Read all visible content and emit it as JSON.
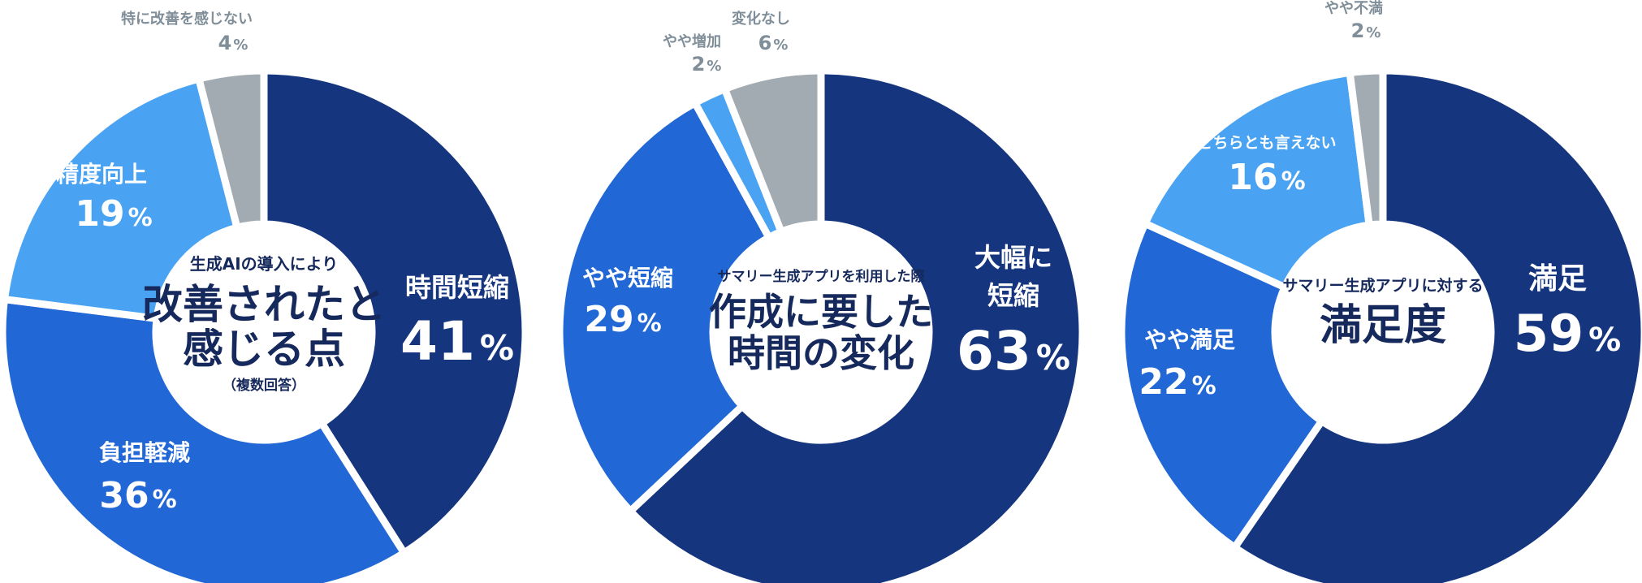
{
  "colors": {
    "navy": "#15357f",
    "blue": "#2167d6",
    "light_blue": "#4aa3f2",
    "grey": "#a1abb1",
    "text_dark": "#16295c",
    "text_grey": "#7f8e98"
  },
  "chart_data": [
    {
      "type": "pie",
      "center": {
        "line1": "生成AIの導入により",
        "line2": "改善されたと",
        "line3": "感じる点",
        "note": "（複数回答）"
      },
      "slices": [
        {
          "label": "時間短縮",
          "value": 41,
          "pct": "%",
          "color": "navy"
        },
        {
          "label": "負担軽減",
          "value": 36,
          "pct": "%",
          "color": "blue"
        },
        {
          "label": "精度向上",
          "value": 19,
          "pct": "%",
          "color": "light_blue"
        },
        {
          "label": "特に改善を感じない",
          "value": 4,
          "pct": "%",
          "color": "grey"
        }
      ]
    },
    {
      "type": "pie",
      "center": {
        "line1": "サマリー生成アプリを利用した際",
        "line2": "作成に要した",
        "line3": "時間の変化"
      },
      "slices": [
        {
          "label_line1": "大幅に",
          "label_line2": "短縮",
          "value": 63,
          "pct": "%",
          "color": "navy"
        },
        {
          "label": "やや短縮",
          "value": 29,
          "pct": "%",
          "color": "blue"
        },
        {
          "label": "やや増加",
          "value": 2,
          "pct": "%",
          "color": "light_blue"
        },
        {
          "label": "変化なし",
          "value": 6,
          "pct": "%",
          "color": "grey"
        }
      ]
    },
    {
      "type": "pie",
      "center": {
        "line1": "サマリー生成アプリに対する",
        "line2": "満足度"
      },
      "slices": [
        {
          "label": "満足",
          "value": 59,
          "pct": "%",
          "color": "navy"
        },
        {
          "label": "やや満足",
          "value": 22,
          "pct": "%",
          "color": "blue"
        },
        {
          "label": "どちらとも言えない",
          "value": 16,
          "pct": "%",
          "color": "light_blue"
        },
        {
          "label": "やや不満",
          "value": 2,
          "pct": "%",
          "color": "grey"
        }
      ]
    }
  ]
}
